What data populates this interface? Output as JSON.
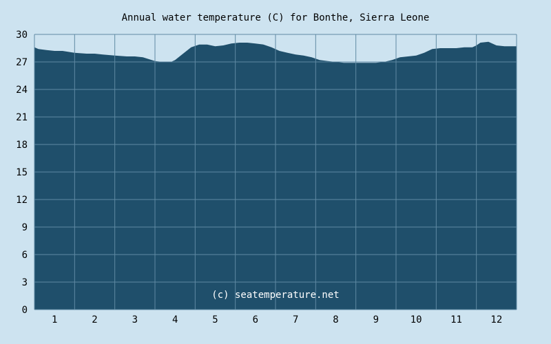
{
  "chart_data": {
    "type": "area",
    "title": "Annual water temperature (C) for Bonthe, Sierra Leone",
    "xlabel": "",
    "ylabel": "",
    "ylim": [
      0,
      30
    ],
    "xlim": [
      0.5,
      12.5
    ],
    "y_ticks": [
      0,
      3,
      6,
      9,
      12,
      15,
      18,
      21,
      24,
      27,
      30
    ],
    "x_ticks": [
      1,
      2,
      3,
      4,
      5,
      6,
      7,
      8,
      9,
      10,
      11,
      12
    ],
    "grid": true,
    "watermark": "(c) seatemperature.net",
    "colors": {
      "background": "#cde3f0",
      "fill": "#1f4f6b",
      "grid": "#5f8aa3"
    },
    "series": [
      {
        "x": [
          0.5,
          0.6,
          0.8,
          1.0,
          1.2,
          1.5,
          1.8,
          2.0,
          2.2,
          2.5,
          2.8,
          3.0,
          3.2,
          3.5,
          3.7,
          3.9,
          4.0,
          4.2,
          4.4,
          4.6,
          4.8,
          5.0,
          5.2,
          5.4,
          5.6,
          5.8,
          6.0,
          6.2,
          6.4,
          6.6,
          6.8,
          7.0,
          7.2,
          7.4,
          7.6,
          7.8,
          8.0,
          8.2,
          8.4,
          8.6,
          8.8,
          9.0,
          9.2,
          9.4,
          9.6,
          9.8,
          10.0,
          10.2,
          10.4,
          10.6,
          10.8,
          11.0,
          11.2,
          11.4,
          11.5,
          11.6,
          11.8,
          12.0,
          12.2,
          12.5
        ],
        "y": [
          28.6,
          28.4,
          28.3,
          28.2,
          28.2,
          28.0,
          27.9,
          27.9,
          27.8,
          27.7,
          27.6,
          27.6,
          27.5,
          27.1,
          27.0,
          27.0,
          27.2,
          27.9,
          28.6,
          28.9,
          28.9,
          28.7,
          28.8,
          29.0,
          29.1,
          29.1,
          29.0,
          28.9,
          28.6,
          28.2,
          28.0,
          27.8,
          27.7,
          27.5,
          27.2,
          27.1,
          27.0,
          26.9,
          26.9,
          26.9,
          26.9,
          26.9,
          27.0,
          27.2,
          27.5,
          27.6,
          27.7,
          28.0,
          28.4,
          28.5,
          28.5,
          28.5,
          28.6,
          28.6,
          28.8,
          29.1,
          29.2,
          28.8,
          28.7,
          28.7
        ]
      }
    ]
  }
}
